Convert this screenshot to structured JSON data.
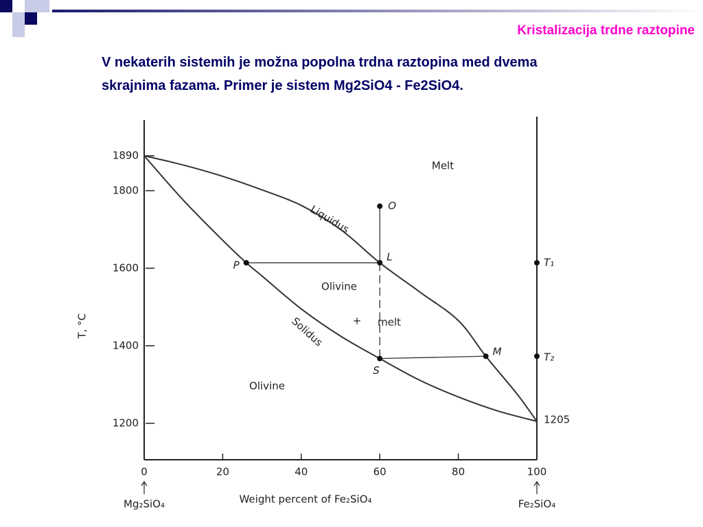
{
  "header": {
    "title": "Kristalizacija  trdne raztopine",
    "text": [
      "V nekaterih sistemih je možna popolna trdna raztopina med dvema",
      "skrajnima fazama. Primer je sistem Mg2SiO4 - Fe2SiO4."
    ]
  },
  "chart_data": {
    "type": "line",
    "xlabel": "Weight percent of Fe₂SiO₄",
    "ylabel": "T, °C",
    "end_labels": [
      "Mg₂SiO₄",
      "Fe₂SiO₄"
    ],
    "xlim": [
      0,
      100
    ],
    "ylim": [
      1106,
      1982
    ],
    "xticks": [
      0,
      20,
      40,
      60,
      80,
      100
    ],
    "yticks": [
      1890,
      1800,
      1600,
      1400,
      1200
    ],
    "end_value": 1205,
    "series": [
      {
        "name": "Liquidus",
        "color": "#333333",
        "x": [
          0,
          10,
          20,
          30,
          40,
          50,
          60,
          70,
          80,
          87,
          95,
          100
        ],
        "values": [
          1890,
          1866,
          1837,
          1802,
          1762,
          1700,
          1614,
          1540,
          1465,
          1373,
          1275,
          1205
        ]
      },
      {
        "name": "Solidus",
        "color": "#333333",
        "x": [
          0,
          10,
          20,
          26,
          30,
          40,
          50,
          60,
          70,
          80,
          90,
          100
        ],
        "values": [
          1890,
          1775,
          1672,
          1614,
          1580,
          1495,
          1425,
          1367,
          1312,
          1268,
          1232,
          1205
        ]
      }
    ],
    "points": [
      {
        "label": "O",
        "x": 60,
        "y": 1760
      },
      {
        "label": "L",
        "x": 60,
        "y": 1614
      },
      {
        "label": "P",
        "x": 26,
        "y": 1614
      },
      {
        "label": "S",
        "x": 60,
        "y": 1367
      },
      {
        "label": "M",
        "x": 87,
        "y": 1373
      },
      {
        "label": "T₁",
        "x": 100,
        "y": 1614
      },
      {
        "label": "T₂",
        "x": 100,
        "y": 1373
      }
    ],
    "annotations": [
      "Melt",
      "Olivine",
      "+",
      "melt",
      "Olivine"
    ]
  }
}
